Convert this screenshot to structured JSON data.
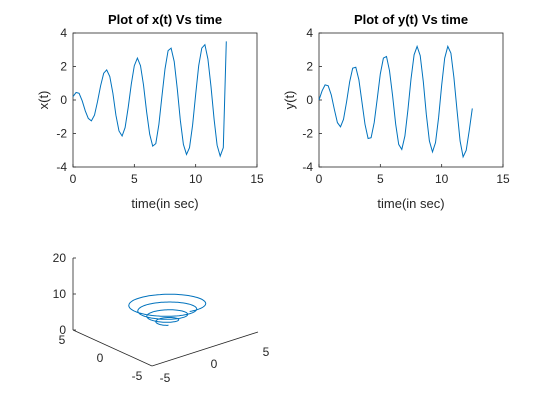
{
  "chart_data": [
    {
      "type": "line",
      "title": "Plot of x(t) Vs time",
      "xlabel": "time(in sec)",
      "ylabel": "x(t)",
      "xlim": [
        0,
        15
      ],
      "ylim": [
        -4,
        4
      ],
      "xticks": [
        "0",
        "5",
        "10",
        "15"
      ],
      "yticks": [
        "4",
        "2",
        "0",
        "-2",
        "-4"
      ],
      "series": [
        {
          "color": "#0072BD",
          "x": [
            0,
            0.25,
            0.5,
            0.75,
            1.0,
            1.25,
            1.5,
            1.75,
            2.0,
            2.25,
            2.5,
            2.75,
            3.0,
            3.25,
            3.5,
            3.75,
            4.0,
            4.25,
            4.5,
            4.75,
            5.0,
            5.25,
            5.5,
            5.75,
            6.0,
            6.25,
            6.5,
            6.75,
            7.0,
            7.25,
            7.5,
            7.75,
            8.0,
            8.25,
            8.5,
            8.75,
            9.0,
            9.25,
            9.5,
            9.75,
            10.0,
            10.25,
            10.5,
            10.75,
            11.0,
            11.25,
            11.5,
            11.75,
            12.0,
            12.25,
            12.5
          ],
          "y": [
            0.2,
            0.45,
            0.4,
            -0.05,
            -0.65,
            -1.1,
            -1.25,
            -0.9,
            -0.1,
            0.85,
            1.6,
            1.8,
            1.4,
            0.4,
            -0.9,
            -1.85,
            -2.15,
            -1.65,
            -0.45,
            0.95,
            2.05,
            2.5,
            2.05,
            0.9,
            -0.7,
            -2.05,
            -2.75,
            -2.6,
            -1.45,
            0.2,
            1.85,
            2.95,
            3.1,
            2.3,
            0.65,
            -1.2,
            -2.65,
            -3.25,
            -2.85,
            -1.5,
            0.35,
            2.05,
            3.1,
            3.3,
            2.45,
            0.8,
            -1.15,
            -2.7,
            -3.35,
            -2.85,
            3.5
          ]
        }
      ]
    },
    {
      "type": "line",
      "title": "Plot of y(t) Vs time",
      "xlabel": "time(in sec)",
      "ylabel": "y(t)",
      "xlim": [
        0,
        15
      ],
      "ylim": [
        -4,
        4
      ],
      "xticks": [
        "0",
        "5",
        "10",
        "15"
      ],
      "yticks": [
        "4",
        "2",
        "0",
        "-2",
        "-4"
      ],
      "series": [
        {
          "color": "#0072BD",
          "x": [
            0,
            0.25,
            0.5,
            0.75,
            1.0,
            1.25,
            1.5,
            1.75,
            2.0,
            2.25,
            2.5,
            2.75,
            3.0,
            3.25,
            3.5,
            3.75,
            4.0,
            4.25,
            4.5,
            4.75,
            5.0,
            5.25,
            5.5,
            5.75,
            6.0,
            6.25,
            6.5,
            6.75,
            7.0,
            7.25,
            7.5,
            7.75,
            8.0,
            8.25,
            8.5,
            8.75,
            9.0,
            9.25,
            9.5,
            9.75,
            10.0,
            10.25,
            10.5,
            10.75,
            11.0,
            11.25,
            11.5,
            11.75,
            12.0,
            12.25,
            12.5
          ],
          "y": [
            0,
            0.55,
            0.9,
            0.85,
            0.3,
            -0.55,
            -1.35,
            -1.6,
            -1.15,
            -0.1,
            1.1,
            1.9,
            1.95,
            1.2,
            -0.1,
            -1.45,
            -2.3,
            -2.25,
            -1.35,
            0.1,
            1.55,
            2.5,
            2.6,
            1.75,
            0.25,
            -1.45,
            -2.65,
            -2.95,
            -2.15,
            -0.6,
            1.25,
            2.7,
            3.2,
            2.65,
            1.1,
            -0.85,
            -2.45,
            -3.1,
            -2.55,
            -1.05,
            0.9,
            2.5,
            3.2,
            2.8,
            1.35,
            -0.6,
            -2.45,
            -3.4,
            -3.0,
            -1.8,
            -0.5
          ]
        }
      ]
    },
    {
      "type": "line",
      "subtype": "3d-helix",
      "title": "",
      "zlim": [
        0,
        20
      ],
      "xticks": [
        "-5",
        "0",
        "5"
      ],
      "yticks": [
        "-5",
        "0",
        "5"
      ],
      "zticks": [
        "20",
        "10",
        "0"
      ],
      "series": [
        {
          "color": "#0072BD",
          "turns": 4,
          "radius_start": 0.5,
          "radius_end": 3.5,
          "z_start": 5,
          "z_end": 11
        }
      ]
    }
  ]
}
